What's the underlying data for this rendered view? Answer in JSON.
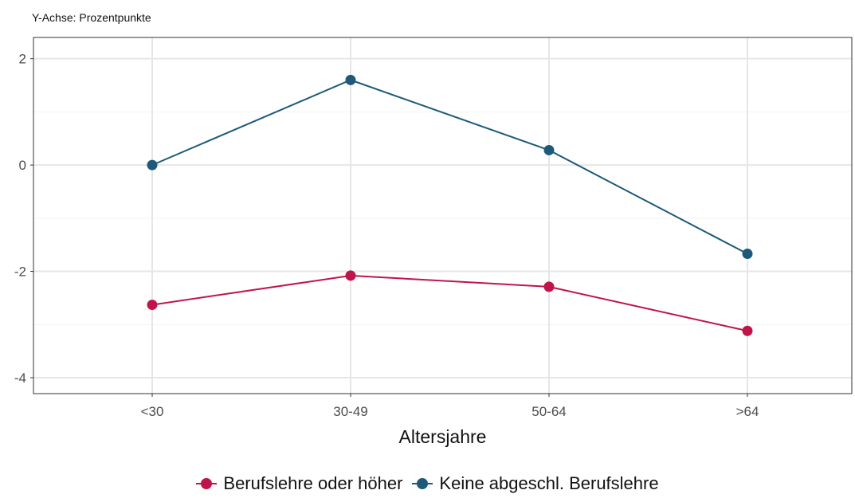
{
  "caption": "Y-Achse: Prozentpunkte",
  "chart_data": {
    "type": "line",
    "title": "",
    "xlabel": "Altersjahre",
    "ylabel": "",
    "categories": [
      "<30",
      "30-49",
      "50-64",
      ">64"
    ],
    "yticks": [
      -4,
      -2,
      0,
      2
    ],
    "ylim": [
      -4.3,
      2.4
    ],
    "grid": true,
    "legend_position": "bottom",
    "series": [
      {
        "name": "Berufslehre oder höher",
        "color": "#c0154a",
        "values": [
          -2.63,
          -2.08,
          -2.29,
          -3.12
        ]
      },
      {
        "name": "Keine abgeschl. Berufslehre",
        "color": "#1d5a7a",
        "values": [
          0.0,
          1.6,
          0.28,
          -1.67
        ]
      }
    ]
  }
}
